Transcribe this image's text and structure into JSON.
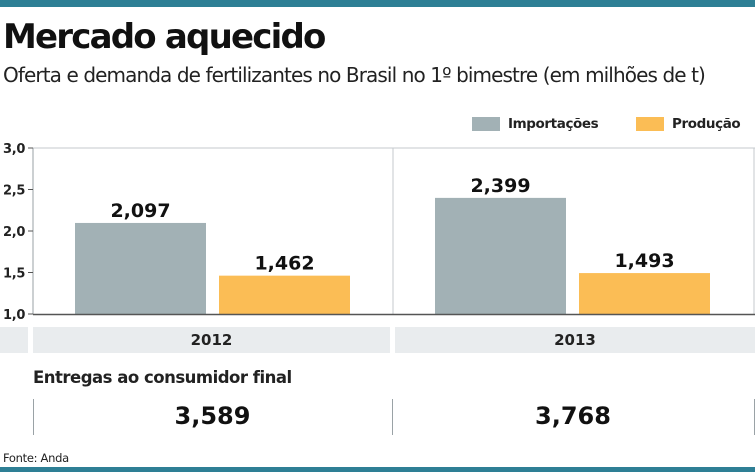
{
  "title": "Mercado aquecido",
  "subtitle": "Oferta e demanda de fertilizantes no Brasil no 1º bimestre (em milhões de t)",
  "source": "Fonte: Anda",
  "colors": {
    "accent": "#2e7f95",
    "importacoes": "#a2b1b5",
    "producao": "#fbbd55",
    "panel": "#e9ecee"
  },
  "chart_data": {
    "type": "bar",
    "categories": [
      "2012",
      "2013"
    ],
    "series": [
      {
        "name": "Importações",
        "values": [
          2.097,
          2.399
        ],
        "labels": [
          "2,097",
          "2,399"
        ]
      },
      {
        "name": "Produção",
        "values": [
          1.462,
          1.493
        ],
        "labels": [
          "1,462",
          "1,493"
        ]
      }
    ],
    "ylim": [
      1.0,
      3.0
    ],
    "yticks": [
      1.0,
      1.5,
      2.0,
      2.5,
      3.0
    ],
    "ytick_labels": [
      "1,0",
      "1,5",
      "2,0",
      "2,5",
      "3,0"
    ],
    "legend": "top-right",
    "grid": false
  },
  "totals": {
    "label": "Entregas ao consumidor final",
    "values": [
      "3,589",
      "3,768"
    ]
  }
}
